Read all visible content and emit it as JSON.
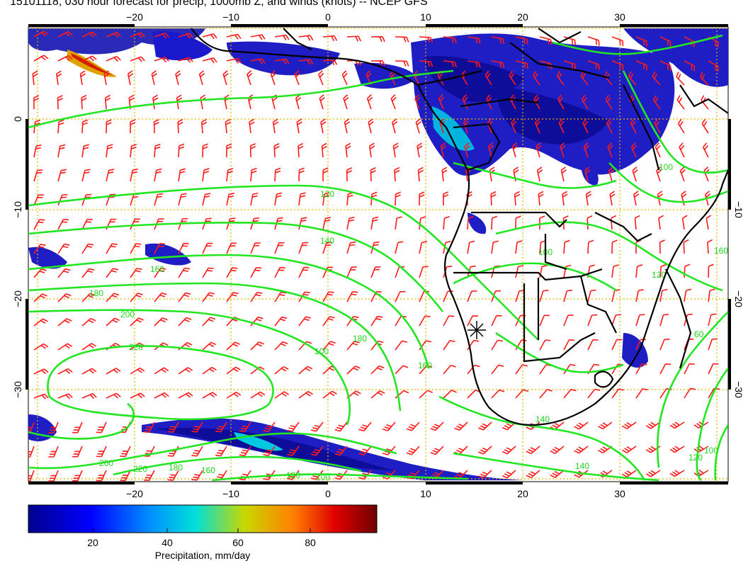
{
  "title": "15101118, 030 hour forecast for precip, 1000mb Z, and winds (knots) -- NCEP GFS",
  "map": {
    "lon_ticks_top": [
      "−20",
      "−10",
      "0",
      "10",
      "20",
      "30"
    ],
    "lon_ticks_bottom": [
      "−20",
      "−10",
      "0",
      "10",
      "20",
      "30"
    ],
    "lat_ticks_left": [
      "0",
      "−10",
      "−20",
      "−30"
    ],
    "lat_ticks_right": [
      "−10",
      "−20",
      "−30"
    ],
    "contour_labels": [
      "120",
      "140",
      "160",
      "180",
      "200",
      "220",
      "180",
      "160",
      "140",
      "120",
      "100",
      "160",
      "180",
      "200",
      "220",
      "100",
      "140",
      "120",
      "100",
      "60",
      "100",
      "100",
      "120",
      "160"
    ],
    "colors": {
      "contour": "#22e622",
      "wind_barb": "#ff1a1a",
      "coastline": "#000000",
      "grid": "#e6b400"
    }
  },
  "colorbar": {
    "ticks": [
      "20",
      "40",
      "60",
      "80"
    ],
    "label": "Precipitation, mm/day",
    "colors": [
      "#00008c",
      "#0000ff",
      "#0080ff",
      "#00e0e0",
      "#c8d800",
      "#ff8000",
      "#e00000",
      "#6e0000"
    ]
  }
}
